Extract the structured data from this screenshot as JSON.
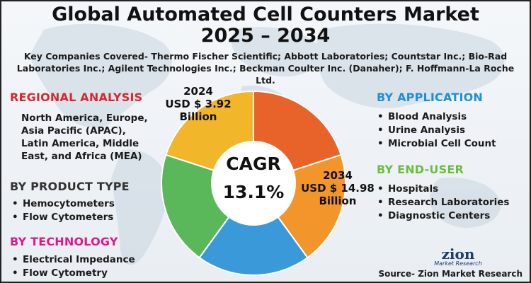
{
  "title_line1": "Global Automated Cell Counters Market",
  "title_line2": "2025 – 2034",
  "companies": "Key Companies Covered- Thermo Fischer Scientific; Abbott Laboratories; Countstar Inc.; Bio-Rad Laboratories Inc.; Agilent Technologies Inc.; Beckman Coulter Inc. (Danaher); F. Hoffmann-La Roche Ltd.",
  "regional": {
    "heading": "REGIONAL ANALYSIS",
    "text": "North America, Europe, Asia Pacific (APAC), Latin America, Middle East, and Africa (MEA)"
  },
  "product_type": {
    "heading": "BY PRODUCT TYPE",
    "items": [
      "Hemocytometers",
      "Flow Cytometers"
    ]
  },
  "technology": {
    "heading": "BY TECHNOLOGY",
    "items": [
      "Electrical Impedance",
      "Flow Cytometry"
    ]
  },
  "application": {
    "heading": "BY APPLICATION",
    "items": [
      "Blood Analysis",
      "Urine Analysis",
      "Microbial Cell Count"
    ]
  },
  "end_user": {
    "heading": "BY END-USER",
    "items": [
      "Hospitals",
      "Research Laboratories",
      "Diagnostic Centers"
    ]
  },
  "market_2024": {
    "year": "2024",
    "value": "USD $ 3.92",
    "unit": "Billion"
  },
  "market_2034": {
    "year": "2034",
    "value": "USD $ 14.98",
    "unit": "Billion"
  },
  "cagr": {
    "label": "CAGR",
    "value": "13.1%"
  },
  "donut_segments": [
    {
      "color": "#e8632a"
    },
    {
      "color": "#f2952b"
    },
    {
      "color": "#3a9ad9"
    },
    {
      "color": "#5bb85a"
    },
    {
      "color": "#f2b62b"
    }
  ],
  "logo": {
    "name": "zion",
    "sub": "Market Research"
  },
  "source": "Source- Zion Market Research"
}
